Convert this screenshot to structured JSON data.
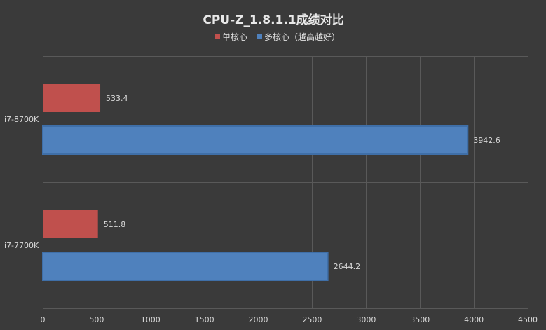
{
  "chart_data": {
    "type": "bar",
    "orientation": "horizontal",
    "title": "CPU-Z_1.8.1.1成绩对比",
    "categories": [
      "i7-8700K",
      "i7-7700K"
    ],
    "series": [
      {
        "name": "单核心",
        "color": "#c0504d",
        "values": [
          533.4,
          511.8
        ],
        "labels": [
          "533.4",
          "511.8"
        ]
      },
      {
        "name": "多核心（越高越好）",
        "color": "#4f81bd",
        "values": [
          3942.6,
          2644.2
        ],
        "labels": [
          "3942.6",
          "2644.2"
        ]
      }
    ],
    "xlim": [
      0,
      4500
    ],
    "xticks": [
      0,
      500,
      1000,
      1500,
      2000,
      2500,
      3000,
      3500,
      4000,
      4500
    ],
    "xlabel": "",
    "ylabel": "",
    "grid": true,
    "legend_position": "top"
  }
}
